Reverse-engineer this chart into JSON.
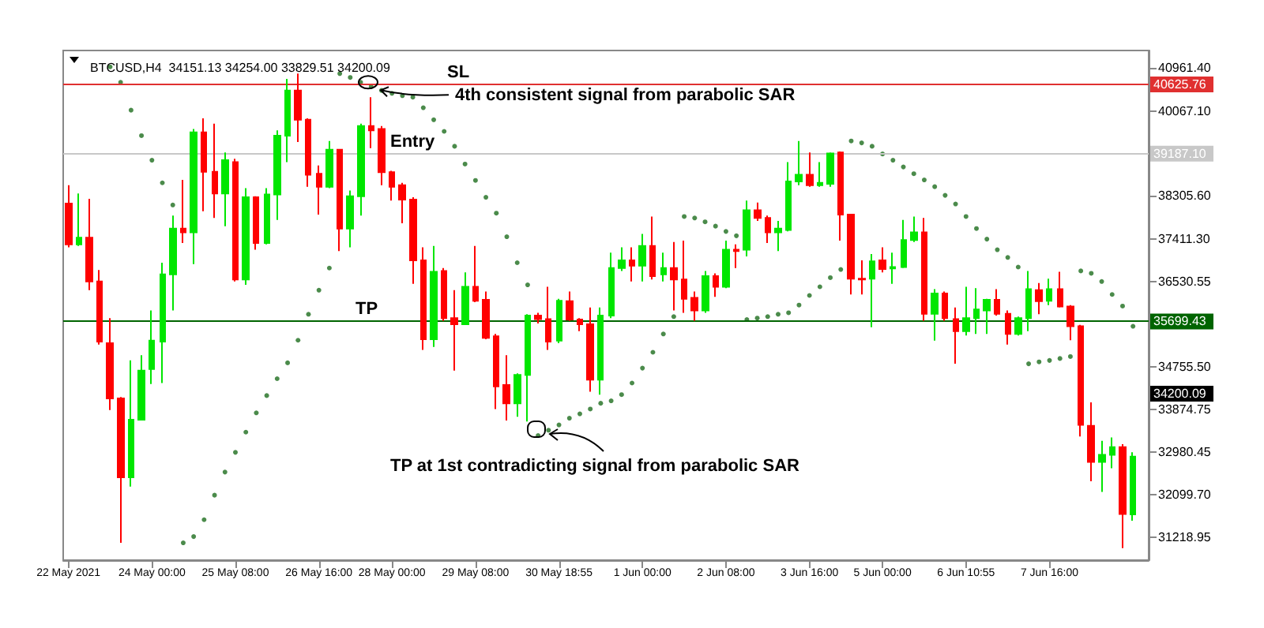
{
  "chart_data": {
    "type": "candlestick",
    "title": "BTCUSD,H4  34151.13 34254.00 33829.51 34200.09",
    "categories": [
      "22 May 2021",
      null,
      null,
      null,
      null,
      null,
      null,
      null,
      "24 May 00:00",
      null,
      null,
      null,
      null,
      null,
      null,
      null,
      "25 May 08:00",
      null,
      null,
      null,
      null,
      null,
      null,
      null,
      "26 May 16:00",
      null,
      null,
      null,
      null,
      null,
      null,
      "28 May 00:00",
      null,
      null,
      null,
      null,
      null,
      null,
      null,
      "29 May 08:00",
      null,
      null,
      null,
      null,
      null,
      null,
      null,
      "30 May 18:55",
      null,
      null,
      null,
      null,
      null,
      null,
      null,
      "1 Jun 00:00",
      null,
      null,
      null,
      null,
      null,
      null,
      null,
      "2 Jun 08:00",
      null,
      null,
      null,
      null,
      null,
      null,
      null,
      "3 Jun 16:00",
      null,
      null,
      null,
      null,
      null,
      null,
      "5 Jun 00:00",
      null,
      null,
      null,
      null,
      null,
      null,
      null,
      "6 Jun 10:55",
      null,
      null,
      null,
      null,
      null,
      null,
      null,
      "7 Jun 16:00",
      null,
      null,
      null,
      null,
      null,
      null,
      null,
      null
    ],
    "ohlc": [
      [
        38150,
        38530,
        37240,
        37300
      ],
      [
        37300,
        38360,
        37270,
        37440
      ],
      [
        37440,
        38250,
        36350,
        36530
      ],
      [
        36530,
        36770,
        35220,
        35280
      ],
      [
        35250,
        35770,
        33860,
        34100
      ],
      [
        34100,
        34130,
        31100,
        32460
      ],
      [
        32460,
        34890,
        32270,
        33660
      ],
      [
        33660,
        35000,
        33640,
        34680
      ],
      [
        34710,
        35930,
        34400,
        35300
      ],
      [
        35280,
        36920,
        34420,
        36680
      ],
      [
        36680,
        37900,
        35930,
        37630
      ],
      [
        37630,
        38640,
        37330,
        37550
      ],
      [
        37550,
        39700,
        36890,
        39630
      ],
      [
        39630,
        39920,
        37990,
        38810
      ],
      [
        38810,
        39810,
        37850,
        38360
      ],
      [
        38360,
        39210,
        37680,
        39050
      ],
      [
        39010,
        39080,
        36530,
        36570
      ],
      [
        36570,
        38470,
        36460,
        38280
      ],
      [
        38280,
        38300,
        37190,
        37330
      ],
      [
        37330,
        38470,
        37300,
        38340
      ],
      [
        38340,
        39670,
        37810,
        39560
      ],
      [
        39560,
        40740,
        39010,
        40500
      ],
      [
        40500,
        40850,
        39430,
        39890
      ],
      [
        39890,
        39920,
        38500,
        38750
      ],
      [
        38770,
        38940,
        37920,
        38500
      ],
      [
        38500,
        39450,
        38470,
        39270
      ],
      [
        39270,
        39270,
        37160,
        37630
      ],
      [
        37630,
        38420,
        37240,
        38300
      ],
      [
        38300,
        39810,
        37900,
        39760
      ],
      [
        39760,
        40360,
        39300,
        39670
      ],
      [
        39700,
        39760,
        38530,
        38800
      ],
      [
        38800,
        38830,
        38210,
        38500
      ],
      [
        38530,
        38580,
        37740,
        38230
      ],
      [
        38230,
        38280,
        36480,
        36970
      ],
      [
        36970,
        37240,
        35110,
        35330
      ],
      [
        35330,
        37270,
        35170,
        36730
      ],
      [
        36750,
        36810,
        35710,
        35770
      ],
      [
        35770,
        36350,
        34680,
        35640
      ],
      [
        35640,
        36720,
        35630,
        36420
      ],
      [
        36420,
        37270,
        36100,
        36130
      ],
      [
        36150,
        36320,
        35330,
        35360
      ],
      [
        35390,
        35440,
        33880,
        34350
      ],
      [
        34380,
        35000,
        33640,
        34000
      ],
      [
        34000,
        34620,
        33720,
        34590
      ],
      [
        34590,
        35850,
        33620,
        35820
      ],
      [
        35820,
        35880,
        35660,
        35750
      ],
      [
        35750,
        36420,
        35110,
        35280
      ],
      [
        35300,
        36170,
        35250,
        36130
      ],
      [
        36120,
        36320,
        35710,
        35740
      ],
      [
        35740,
        35770,
        35500,
        35640
      ],
      [
        35640,
        35990,
        34240,
        34490
      ],
      [
        34490,
        35990,
        34180,
        35820
      ],
      [
        35820,
        37130,
        35770,
        36810
      ],
      [
        36810,
        37240,
        36750,
        36970
      ],
      [
        36970,
        37240,
        36530,
        36860
      ],
      [
        36860,
        37520,
        36530,
        37270
      ],
      [
        37270,
        37880,
        36570,
        36640
      ],
      [
        36680,
        37130,
        36530,
        36810
      ],
      [
        36810,
        37350,
        35930,
        36570
      ],
      [
        36570,
        37380,
        35880,
        36170
      ],
      [
        36190,
        36320,
        35710,
        35930
      ],
      [
        35930,
        36750,
        35880,
        36640
      ],
      [
        36640,
        36700,
        36210,
        36420
      ],
      [
        36420,
        37380,
        36390,
        37190
      ],
      [
        37190,
        37300,
        36810,
        37160
      ],
      [
        37190,
        38210,
        37050,
        38010
      ],
      [
        38010,
        38170,
        37790,
        37850
      ],
      [
        37850,
        37900,
        37330,
        37550
      ],
      [
        37550,
        37790,
        37160,
        37630
      ],
      [
        37600,
        39010,
        37570,
        38610
      ],
      [
        38610,
        39450,
        38530,
        38750
      ],
      [
        38750,
        39210,
        38500,
        38530
      ],
      [
        38530,
        39010,
        38500,
        38580
      ],
      [
        38560,
        39210,
        38500,
        39190
      ],
      [
        39210,
        39230,
        37380,
        37920
      ],
      [
        37920,
        37920,
        36260,
        36590
      ],
      [
        36590,
        36970,
        36260,
        36570
      ],
      [
        36590,
        37100,
        35580,
        36950
      ],
      [
        36970,
        37240,
        36720,
        36790
      ],
      [
        36800,
        37130,
        36480,
        36830
      ],
      [
        36830,
        37810,
        36810,
        37390
      ],
      [
        37390,
        37880,
        37350,
        37550
      ],
      [
        37550,
        37850,
        35710,
        35860
      ],
      [
        35860,
        36370,
        35300,
        36280
      ],
      [
        36280,
        36320,
        35710,
        35770
      ],
      [
        35750,
        35990,
        34820,
        35500
      ],
      [
        35500,
        36420,
        35410,
        35770
      ],
      [
        35770,
        36390,
        35440,
        35950
      ],
      [
        35930,
        36170,
        35440,
        36150
      ],
      [
        36150,
        36370,
        35820,
        35860
      ],
      [
        35860,
        35930,
        35220,
        35440
      ],
      [
        35440,
        35800,
        35410,
        35770
      ],
      [
        35770,
        36750,
        35500,
        36370
      ],
      [
        36350,
        36500,
        35850,
        36120
      ],
      [
        36130,
        36590,
        36040,
        36370
      ],
      [
        36370,
        36730,
        35990,
        36010
      ],
      [
        36010,
        36040,
        35310,
        35600
      ],
      [
        35600,
        35630,
        33310,
        33550
      ],
      [
        33530,
        34020,
        32380,
        32780
      ],
      [
        32780,
        33220,
        32160,
        32930
      ],
      [
        32930,
        33290,
        32650,
        33090
      ],
      [
        33090,
        33150,
        30990,
        31700
      ],
      [
        31690,
        32980,
        31560,
        32890
      ]
    ],
    "series": [
      {
        "type": "scatter",
        "color": "#1e6e1e",
        "marker": "circle",
        "values": [
          null,
          null,
          null,
          null,
          40990,
          40670,
          40090,
          39560,
          39050,
          38580,
          38120,
          31100,
          31230,
          31580,
          32090,
          32570,
          32980,
          33400,
          33800,
          34160,
          34510,
          34840,
          35310,
          35850,
          36350,
          36810,
          40850,
          40770,
          40670,
          40580,
          40500,
          40440,
          40390,
          40360,
          40140,
          39890,
          39650,
          39340,
          38970,
          38630,
          38280,
          37950,
          37460,
          36920,
          36460,
          33330,
          33440,
          33550,
          33690,
          33780,
          33880,
          34000,
          34050,
          34180,
          34420,
          34730,
          35060,
          35440,
          35800,
          37880,
          37850,
          37770,
          37680,
          37570,
          37480,
          35740,
          35770,
          35800,
          35850,
          35880,
          36040,
          36240,
          36420,
          36610,
          36780,
          39450,
          39410,
          39340,
          39180,
          39050,
          38910,
          38770,
          38640,
          38500,
          38320,
          38140,
          37880,
          37630,
          37410,
          37190,
          37030,
          36830,
          34820,
          34860,
          34890,
          34930,
          34970,
          36750,
          36700,
          36530,
          36260,
          36020,
          35600
        ]
      }
    ],
    "ylim": [
      30740,
      41330
    ],
    "yticks": [
      {
        "value": 40961.4,
        "label": "40961.40"
      },
      {
        "value": 40067.1,
        "label": "40067.10"
      },
      {
        "value": 38305.6,
        "label": "38305.60"
      },
      {
        "value": 37411.3,
        "label": "37411.30"
      },
      36530.55,
      {
        "value": 34755.5,
        "label": "34755.50"
      },
      33874.75,
      32980.45,
      {
        "value": 32099.7,
        "label": "32099.70"
      },
      31218.95
    ],
    "ref_lines": [
      {
        "axis": "y",
        "value": 40625.76,
        "label": "SL",
        "color": "#e03030",
        "line_style": "solid"
      },
      {
        "axis": "y",
        "value": 39187.1,
        "label": "Entry",
        "color": "#c8c8c8",
        "line_style": "solid"
      },
      {
        "axis": "y",
        "value": 35699.43,
        "label": "TP",
        "color": "#006400",
        "line_style": "solid"
      }
    ],
    "annotations": [
      {
        "text": "4th consistent signal from parabolic SAR",
        "y": 40670
      },
      "TP at 1st contradicting signal from parabolic SAR",
      "40625.76",
      "39187.10",
      "35699.43",
      "34200.09"
    ],
    "grid": false
  }
}
